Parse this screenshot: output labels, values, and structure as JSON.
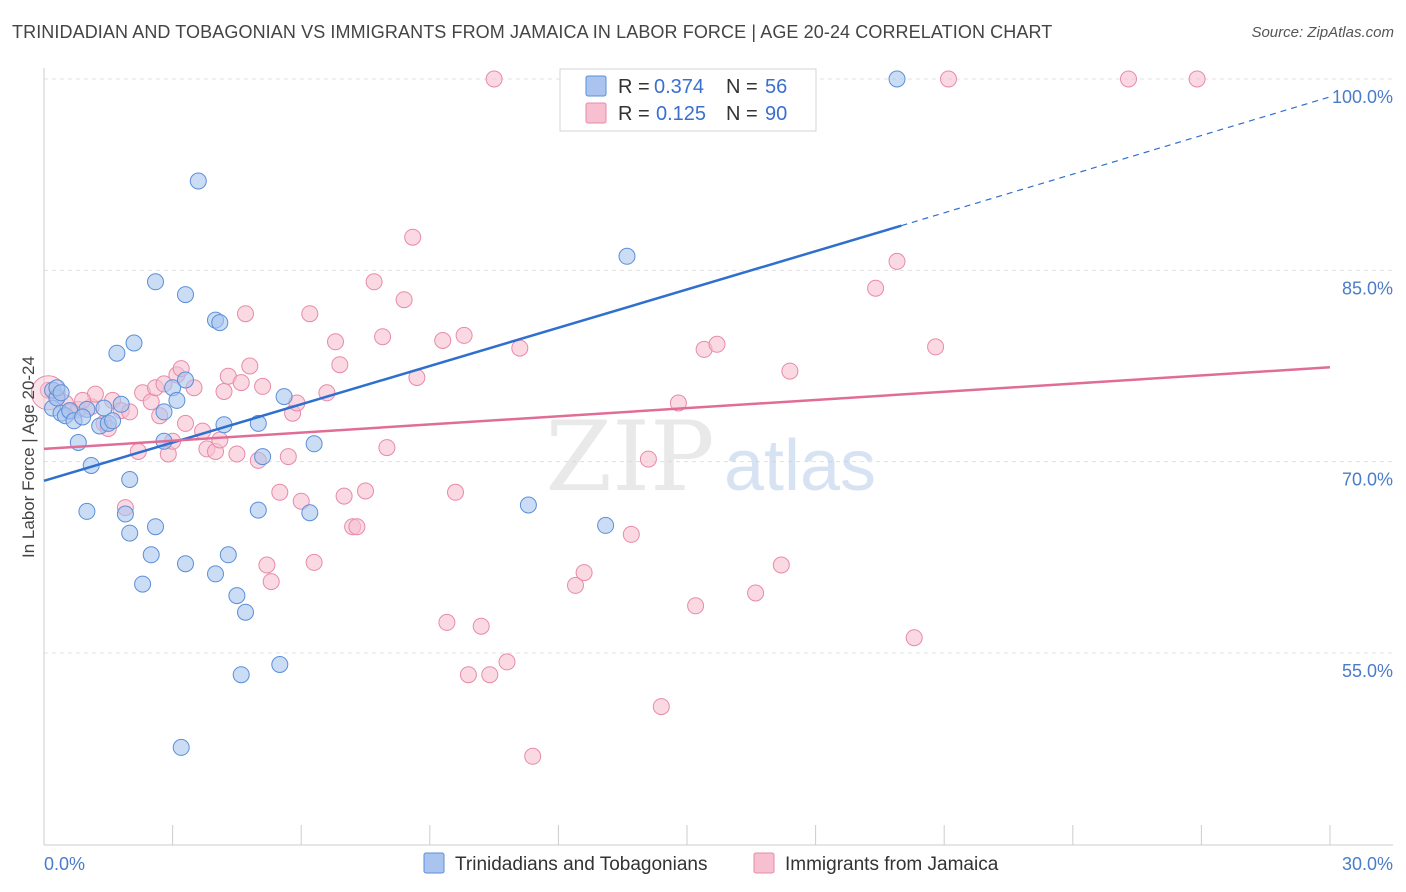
{
  "header": {
    "title": "TRINIDADIAN AND TOBAGONIAN VS IMMIGRANTS FROM JAMAICA IN LABOR FORCE | AGE 20-24 CORRELATION CHART",
    "source": "Source: ZipAtlas.com"
  },
  "watermark": {
    "zip": "ZIP",
    "atlas": "atlas"
  },
  "colors": {
    "blue_fill": "#a8c4ef",
    "blue_stroke": "#5b8fd9",
    "blue_line": "#2f6fce",
    "pink_fill": "#f7c0d1",
    "pink_stroke": "#e88aaa",
    "pink_line": "#e06d97",
    "tick_text": "#4a7cc9",
    "grid": "#e0e0e0"
  },
  "legend": {
    "rows": [
      {
        "r_label": "R =",
        "r_value": "0.374",
        "n_label": "N =",
        "n_value": "56"
      },
      {
        "r_label": "R =",
        "r_value": "0.125",
        "n_label": "N =",
        "n_value": "90"
      }
    ]
  },
  "chart_data": {
    "type": "scatter",
    "ylabel": "In Labor Force | Age 20-24",
    "xlim": [
      0,
      30
    ],
    "ylim": [
      40,
      103.5
    ],
    "x_tick_labels": {
      "left": "0.0%",
      "right": "30.0%"
    },
    "y_ticks": [
      {
        "value": 100,
        "label": "100.0%"
      },
      {
        "value": 85,
        "label": "85.0%"
      },
      {
        "value": 70,
        "label": "70.0%"
      },
      {
        "value": 55,
        "label": "55.0%"
      }
    ],
    "series": [
      {
        "name": "Trinidadians and Tobagonians",
        "color": "blue",
        "trend": {
          "x0": 0,
          "y0": 68.5,
          "x1": 20.0,
          "y1": 88.5,
          "dashed_to_x": 30,
          "dashed_to_y": 98.6
        },
        "points": [
          [
            0.2,
            75.6
          ],
          [
            0.2,
            74.2
          ],
          [
            0.3,
            75.0
          ],
          [
            0.4,
            73.8
          ],
          [
            0.5,
            73.6
          ],
          [
            0.6,
            74.0
          ],
          [
            0.7,
            73.2
          ],
          [
            0.8,
            71.5
          ],
          [
            1.0,
            74.1
          ],
          [
            1.1,
            69.7
          ],
          [
            1.3,
            72.8
          ],
          [
            1.4,
            74.2
          ],
          [
            1.5,
            73.0
          ],
          [
            1.7,
            78.5
          ],
          [
            1.8,
            74.5
          ],
          [
            1.9,
            65.9
          ],
          [
            2.0,
            64.4
          ],
          [
            2.0,
            68.6
          ],
          [
            2.1,
            79.3
          ],
          [
            2.3,
            60.4
          ],
          [
            2.5,
            62.7
          ],
          [
            2.6,
            64.9
          ],
          [
            2.6,
            84.1
          ],
          [
            2.8,
            73.9
          ],
          [
            2.8,
            71.6
          ],
          [
            3.0,
            75.8
          ],
          [
            3.1,
            74.8
          ],
          [
            3.2,
            47.6
          ],
          [
            3.3,
            76.4
          ],
          [
            3.3,
            83.1
          ],
          [
            3.3,
            62.0
          ],
          [
            3.6,
            92.0
          ],
          [
            4.0,
            81.1
          ],
          [
            4.0,
            61.2
          ],
          [
            4.1,
            80.9
          ],
          [
            4.2,
            72.9
          ],
          [
            4.3,
            62.7
          ],
          [
            4.5,
            59.5
          ],
          [
            4.6,
            53.3
          ],
          [
            4.7,
            58.2
          ],
          [
            5.0,
            66.2
          ],
          [
            5.0,
            73.0
          ],
          [
            5.1,
            70.4
          ],
          [
            5.5,
            54.1
          ],
          [
            5.6,
            75.1
          ],
          [
            6.2,
            66.0
          ],
          [
            6.3,
            71.4
          ],
          [
            1.0,
            66.1
          ],
          [
            0.3,
            75.8
          ],
          [
            0.9,
            73.5
          ],
          [
            1.6,
            73.2
          ],
          [
            0.4,
            75.4
          ],
          [
            11.3,
            66.6
          ],
          [
            12.7,
            100.0
          ],
          [
            13.1,
            65.0
          ],
          [
            13.6,
            86.1
          ],
          [
            19.9,
            100.0
          ]
        ]
      },
      {
        "name": "Immigrants from Jamaica",
        "color": "pink",
        "trend": {
          "x0": 0,
          "y0": 71.0,
          "x1": 30,
          "y1": 77.4
        },
        "points": [
          [
            0.1,
            75.6
          ],
          [
            0.3,
            75.2
          ],
          [
            0.5,
            74.6
          ],
          [
            0.8,
            74.1
          ],
          [
            1.1,
            74.3
          ],
          [
            1.2,
            75.3
          ],
          [
            1.4,
            73.0
          ],
          [
            1.6,
            74.8
          ],
          [
            1.8,
            74.0
          ],
          [
            1.9,
            66.4
          ],
          [
            2.0,
            73.9
          ],
          [
            2.2,
            70.8
          ],
          [
            2.3,
            75.4
          ],
          [
            2.5,
            74.7
          ],
          [
            2.6,
            75.8
          ],
          [
            2.8,
            76.1
          ],
          [
            2.9,
            70.6
          ],
          [
            3.0,
            71.6
          ],
          [
            3.1,
            76.8
          ],
          [
            3.2,
            77.3
          ],
          [
            3.3,
            73.0
          ],
          [
            3.5,
            75.8
          ],
          [
            3.7,
            72.4
          ],
          [
            3.8,
            71.0
          ],
          [
            4.0,
            70.8
          ],
          [
            4.1,
            71.7
          ],
          [
            4.2,
            75.5
          ],
          [
            4.3,
            76.7
          ],
          [
            4.5,
            70.6
          ],
          [
            4.6,
            76.2
          ],
          [
            4.7,
            81.6
          ],
          [
            4.8,
            77.5
          ],
          [
            5.0,
            70.1
          ],
          [
            5.1,
            75.9
          ],
          [
            5.2,
            61.9
          ],
          [
            5.3,
            60.6
          ],
          [
            5.5,
            67.6
          ],
          [
            5.7,
            70.4
          ],
          [
            5.8,
            73.8
          ],
          [
            5.9,
            74.6
          ],
          [
            6.0,
            66.9
          ],
          [
            6.2,
            81.6
          ],
          [
            6.3,
            62.1
          ],
          [
            6.6,
            75.4
          ],
          [
            6.8,
            79.4
          ],
          [
            6.9,
            77.6
          ],
          [
            7.0,
            67.3
          ],
          [
            7.2,
            64.9
          ],
          [
            7.3,
            64.9
          ],
          [
            7.5,
            67.7
          ],
          [
            7.7,
            84.1
          ],
          [
            7.9,
            79.8
          ],
          [
            8.0,
            71.1
          ],
          [
            8.4,
            82.7
          ],
          [
            8.6,
            87.6
          ],
          [
            8.7,
            76.6
          ],
          [
            9.3,
            79.5
          ],
          [
            9.4,
            57.4
          ],
          [
            9.6,
            67.6
          ],
          [
            9.8,
            79.9
          ],
          [
            9.9,
            53.3
          ],
          [
            10.2,
            57.1
          ],
          [
            10.4,
            53.3
          ],
          [
            10.5,
            100.0
          ],
          [
            10.8,
            54.3
          ],
          [
            11.1,
            78.9
          ],
          [
            11.4,
            46.9
          ],
          [
            12.4,
            60.3
          ],
          [
            12.6,
            61.3
          ],
          [
            13.7,
            64.3
          ],
          [
            14.1,
            70.2
          ],
          [
            14.4,
            50.8
          ],
          [
            14.8,
            74.6
          ],
          [
            15.2,
            58.7
          ],
          [
            15.4,
            78.8
          ],
          [
            15.7,
            79.2
          ],
          [
            16.6,
            59.7
          ],
          [
            17.2,
            61.9
          ],
          [
            17.4,
            77.1
          ],
          [
            19.4,
            83.6
          ],
          [
            19.9,
            85.7
          ],
          [
            20.3,
            56.2
          ],
          [
            20.8,
            79.0
          ],
          [
            21.1,
            100.0
          ],
          [
            25.3,
            100.0
          ],
          [
            26.9,
            100.0
          ],
          [
            0.6,
            73.9
          ],
          [
            1.5,
            72.6
          ],
          [
            2.7,
            73.6
          ],
          [
            0.9,
            74.8
          ]
        ]
      }
    ]
  },
  "bottom_legend": {
    "items": [
      {
        "label": "Trinidadians and Tobagonians",
        "color": "blue"
      },
      {
        "label": "Immigrants from Jamaica",
        "color": "pink"
      }
    ]
  }
}
